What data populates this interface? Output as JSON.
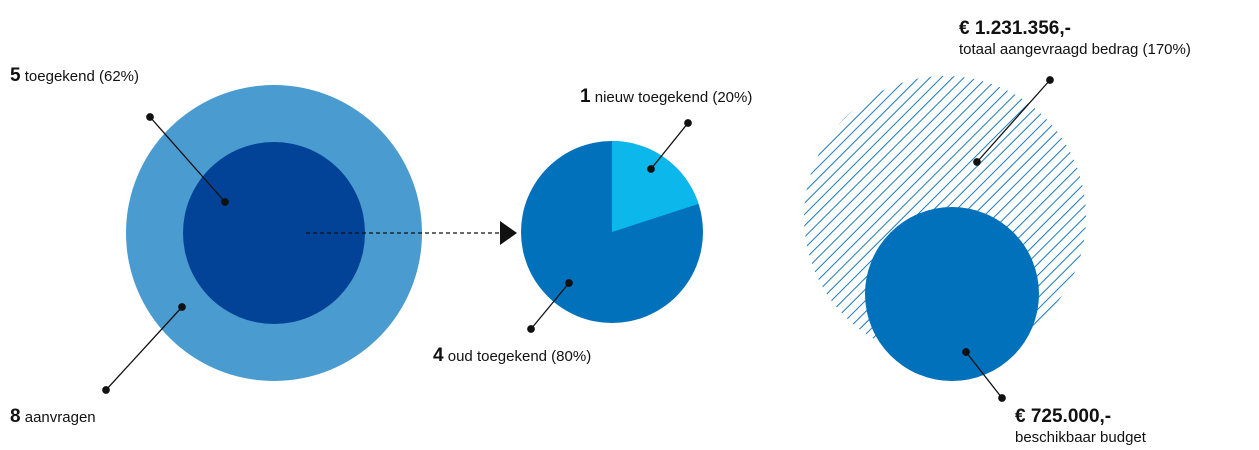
{
  "colors": {
    "light_blue": "#4a9bd0",
    "dark_blue": "#034397",
    "pie_main": "#0071ba",
    "pie_slice": "#0bb7eb",
    "hatch": "#1d79bf",
    "budget": "#0071ba",
    "leader": "#111111"
  },
  "applications": {
    "total_num": "8",
    "total_text": "aanvragen",
    "granted_num": "5",
    "granted_text": "toegekend (62%)",
    "total_value": 8,
    "granted_value": 5
  },
  "granted_split": {
    "new_num": "1",
    "new_text": "nieuw toegekend (20%)",
    "old_num": "4",
    "old_text": "oud toegekend (80%)",
    "new_value": 1,
    "old_value": 4
  },
  "budget": {
    "requested_amount": "€ 1.231.356,-",
    "requested_text": "totaal aangevraagd bedrag (170%)",
    "available_amount": "€ 725.000,-",
    "available_text": "beschikbaar budget"
  }
}
